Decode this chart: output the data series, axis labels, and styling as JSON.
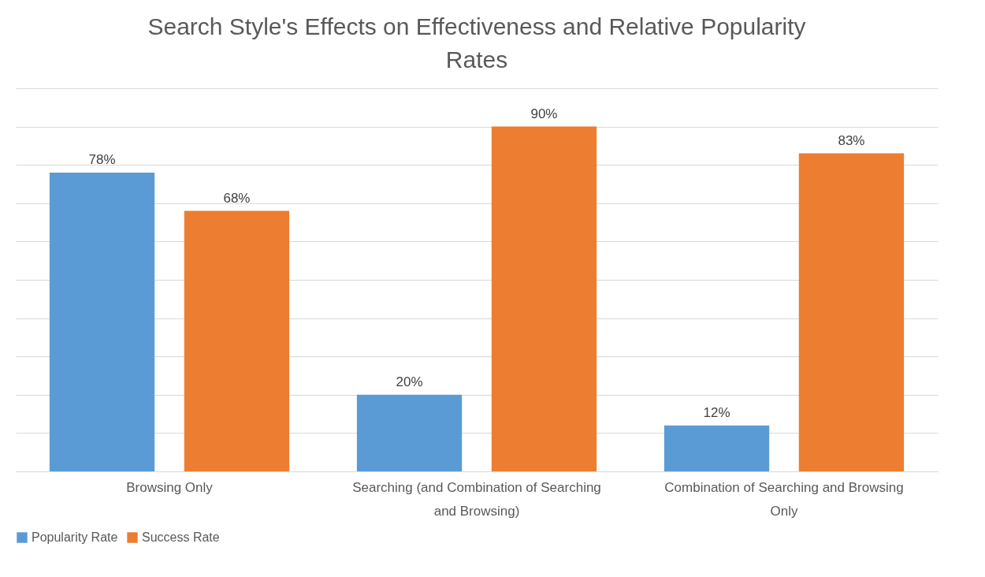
{
  "chart_data": {
    "type": "bar",
    "title": "Search Style's Effects on Effectiveness and Relative Popularity Rates",
    "categories": [
      "Browsing Only",
      "Searching (and Combination of Searching and Browsing)",
      "Combination of Searching and Browsing Only"
    ],
    "series": [
      {
        "name": "Popularity Rate",
        "color": "#5b9bd5",
        "values": [
          78,
          20,
          12
        ],
        "value_labels": [
          "78%",
          "20%",
          "12%"
        ]
      },
      {
        "name": "Success Rate",
        "color": "#ed7d31",
        "values": [
          68,
          90,
          83
        ],
        "value_labels": [
          "68%",
          "90%",
          "83%"
        ]
      }
    ],
    "ylim": [
      0,
      100
    ],
    "yticks": [
      0,
      10,
      20,
      30,
      40,
      50,
      60,
      70,
      80,
      90,
      100
    ],
    "tick_labels": "x",
    "grid": "y",
    "legend": "bottom"
  }
}
